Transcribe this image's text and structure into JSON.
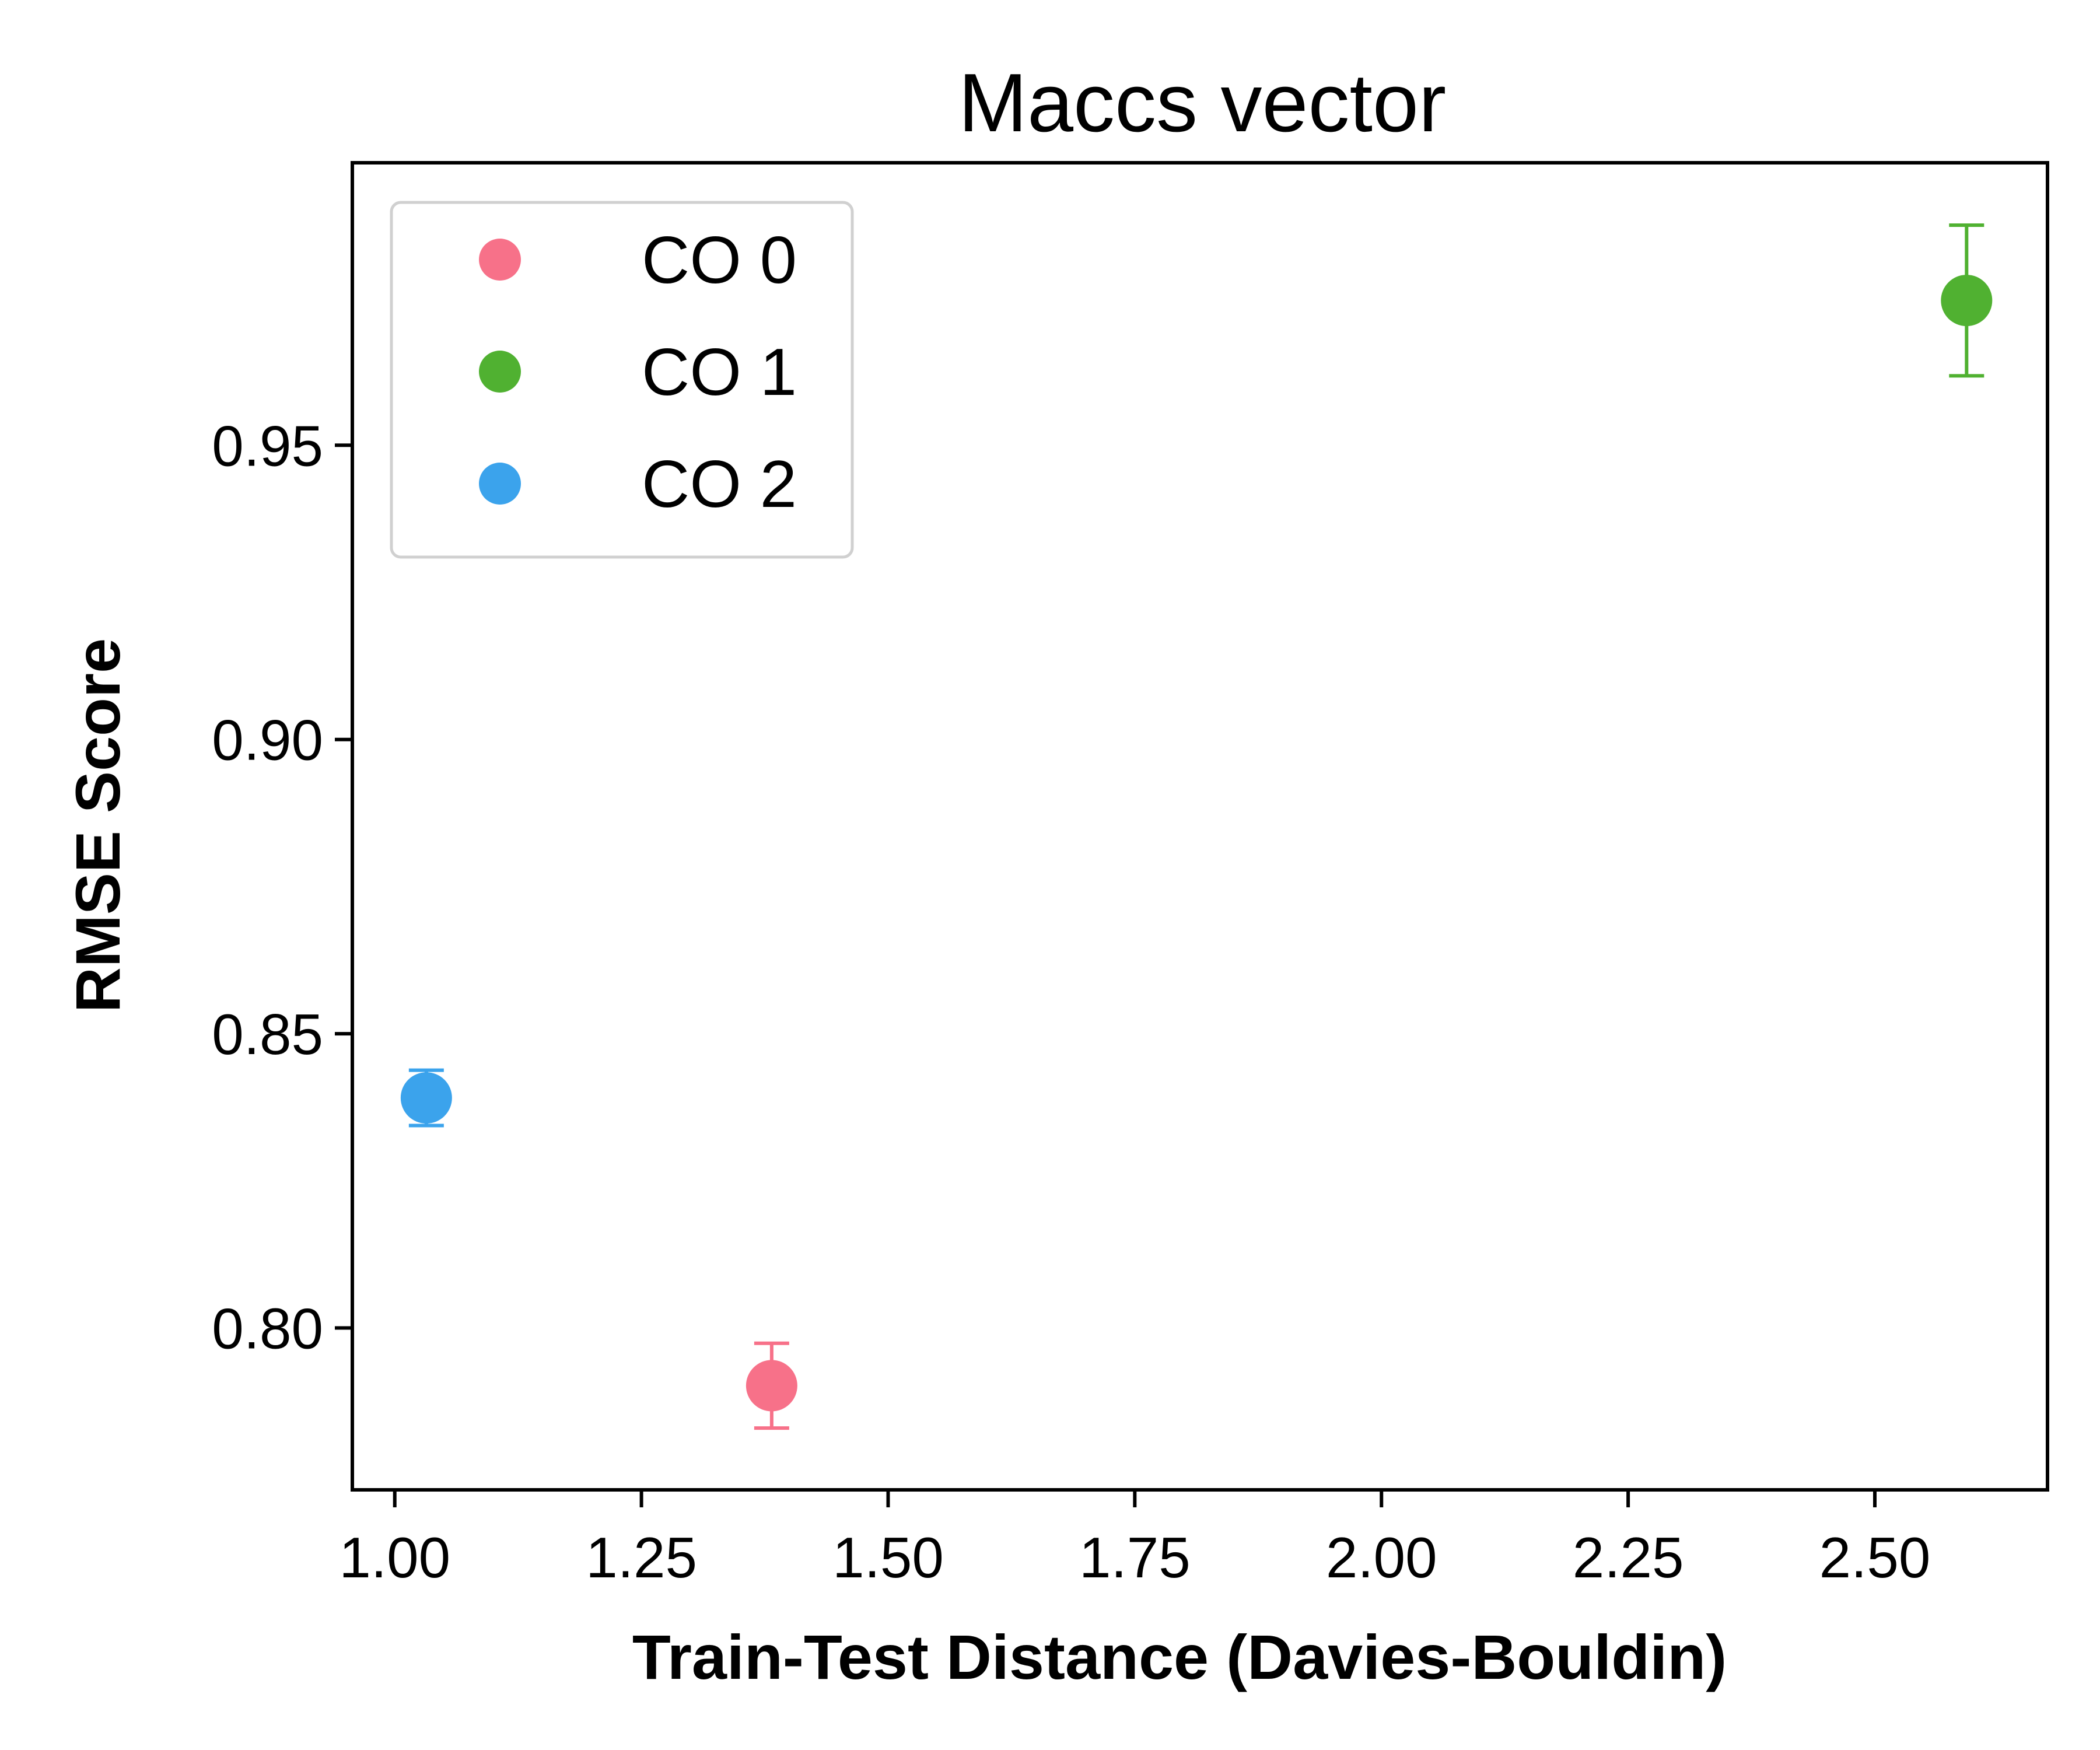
{
  "chart_data": {
    "type": "scatter",
    "title": "Maccs vector",
    "xlabel": "Train-Test Distance (Davies-Bouldin)",
    "ylabel": "RMSE Score",
    "xlim": [
      0.957,
      2.675
    ],
    "ylim": [
      0.7725,
      0.998
    ],
    "xticks": [
      "1.00",
      "1.25",
      "1.50",
      "1.75",
      "2.00",
      "2.25",
      "2.50"
    ],
    "xtick_values": [
      1.0,
      1.25,
      1.5,
      1.75,
      2.0,
      2.25,
      2.5
    ],
    "yticks": [
      "0.80",
      "0.85",
      "0.90",
      "0.95"
    ],
    "ytick_values": [
      0.8,
      0.85,
      0.9,
      0.95
    ],
    "grid": false,
    "legend_position": "top-left",
    "series": [
      {
        "name": "CO 0",
        "color": "#f77189",
        "x": [
          1.382
        ],
        "y": [
          0.7902
        ],
        "yerr": [
          0.0072
        ]
      },
      {
        "name": "CO 1",
        "color": "#50b131",
        "x": [
          2.593
        ],
        "y": [
          0.9746
        ],
        "yerr": [
          0.0128
        ]
      },
      {
        "name": "CO 2",
        "color": "#3ba3ec",
        "x": [
          1.032
        ],
        "y": [
          0.8391
        ],
        "yerr": [
          0.0047
        ]
      }
    ]
  }
}
